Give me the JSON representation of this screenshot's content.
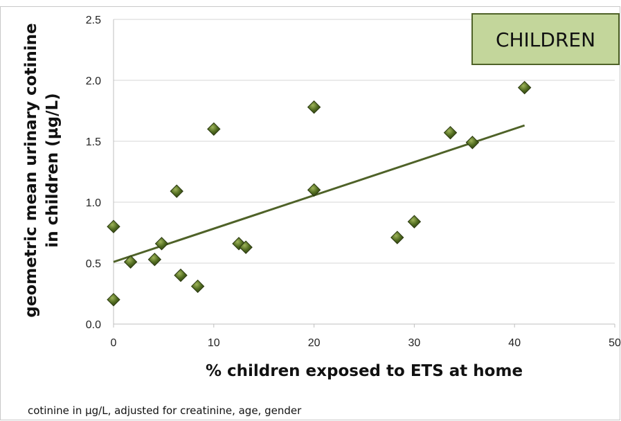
{
  "chart_data": {
    "type": "scatter",
    "xlabel": "% children exposed to ETS at home",
    "ylabel_lines": [
      "geometric mean urinary cotinine",
      "in children (µg/L)"
    ],
    "xlim": [
      0,
      50
    ],
    "ylim": [
      0,
      2.5
    ],
    "x_ticks": [
      0,
      10,
      20,
      30,
      40,
      50
    ],
    "y_ticks": [
      0.0,
      0.5,
      1.0,
      1.5,
      2.0,
      2.5
    ],
    "x_tick_labels": [
      "0",
      "10",
      "20",
      "30",
      "40",
      "50"
    ],
    "y_tick_labels": [
      "0.0",
      "0.5",
      "1.0",
      "1.5",
      "2.0",
      "2.5"
    ],
    "grid": "horizontal",
    "points": [
      {
        "x": 0.0,
        "y": 0.8
      },
      {
        "x": 0.0,
        "y": 0.2
      },
      {
        "x": 1.7,
        "y": 0.51
      },
      {
        "x": 4.1,
        "y": 0.53
      },
      {
        "x": 4.8,
        "y": 0.66
      },
      {
        "x": 6.3,
        "y": 1.09
      },
      {
        "x": 6.7,
        "y": 0.4
      },
      {
        "x": 8.4,
        "y": 0.31
      },
      {
        "x": 10.0,
        "y": 1.6
      },
      {
        "x": 12.5,
        "y": 0.66
      },
      {
        "x": 13.2,
        "y": 0.63
      },
      {
        "x": 20.0,
        "y": 1.78
      },
      {
        "x": 20.0,
        "y": 1.1
      },
      {
        "x": 28.3,
        "y": 0.71
      },
      {
        "x": 30.0,
        "y": 0.84
      },
      {
        "x": 33.6,
        "y": 1.57
      },
      {
        "x": 35.8,
        "y": 1.49
      },
      {
        "x": 41.0,
        "y": 1.94
      }
    ],
    "trendline": {
      "x": [
        0,
        41
      ],
      "y": [
        0.51,
        1.63
      ]
    },
    "marker_color": "#4a5e1c",
    "trendline_color": "#4f6228",
    "group_label": "CHILDREN",
    "group_label_bg": "#c3d69b",
    "group_label_border": "#4f6228",
    "legend": "top-right"
  },
  "footnote": "cotinine in µg/L, adjusted for creatinine, age, gender"
}
